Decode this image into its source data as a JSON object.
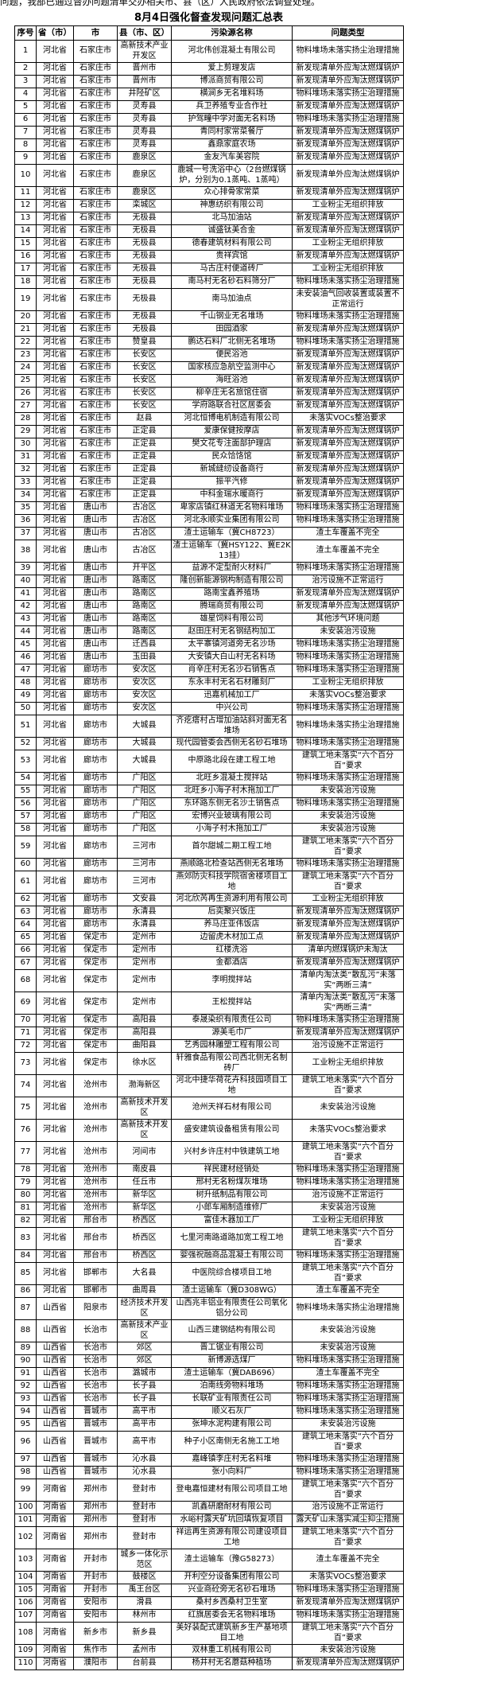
{
  "document": {
    "intro_text": "问题，我部已通过督办问题清单交办相关市、县（区）人民政府依法调查处理。",
    "title": "8月4日强化督查发现问题汇总表"
  },
  "table": {
    "headers": [
      "序号",
      "省（市）",
      "市",
      "县（市、区）",
      "污染源名称",
      "问题类型"
    ],
    "rows": [
      [
        "1",
        "河北省",
        "石家庄市",
        "高新技术产业开发区",
        "河北伟创混凝土有限公司",
        "物料堆场未落实扬尘治理措施"
      ],
      [
        "2",
        "河北省",
        "石家庄市",
        "晋州市",
        "爱上剪理发店",
        "新发现清单外应淘汰燃煤锅炉"
      ],
      [
        "3",
        "河北省",
        "石家庄市",
        "晋州市",
        "博派商贸有限公司",
        "新发现清单外应淘汰燃煤锅炉"
      ],
      [
        "4",
        "河北省",
        "石家庄市",
        "井陉矿区",
        "横涧乡无名堆料场",
        "物料堆场未落实扬尘治理措施"
      ],
      [
        "5",
        "河北省",
        "石家庄市",
        "灵寿县",
        "兵卫养殖专业合作社",
        "新发现清单外应淘汰燃煤锅炉"
      ],
      [
        "6",
        "河北省",
        "石家庄市",
        "灵寿县",
        "护驾疃中学对面无名料场",
        "物料堆场未落实扬尘治理措施"
      ],
      [
        "7",
        "河北省",
        "石家庄市",
        "灵寿县",
        "青同村家常菜餐厅",
        "新发现清单外应淘汰燃煤锅炉"
      ],
      [
        "8",
        "河北省",
        "石家庄市",
        "灵寿县",
        "鑫鼎家庭农场",
        "新发现清单外应淘汰燃煤锅炉"
      ],
      [
        "9",
        "河北省",
        "石家庄市",
        "鹿泉区",
        "金友汽车美容院",
        "新发现清单外应淘汰燃煤锅炉"
      ],
      [
        "10",
        "河北省",
        "石家庄市",
        "鹿泉区",
        "鹿城一号洗浴中心（2台燃煤锅炉，分别为0.1蒸吨、1蒸吨）",
        "新发现清单外应淘汰燃煤锅炉"
      ],
      [
        "11",
        "河北省",
        "石家庄市",
        "鹿泉区",
        "众心排骨家常菜",
        "新发现清单外应淘汰燃煤锅炉"
      ],
      [
        "12",
        "河北省",
        "石家庄市",
        "栾城区",
        "神惠纺织有限公司",
        "工业粉尘无组织排放"
      ],
      [
        "13",
        "河北省",
        "石家庄市",
        "无极县",
        "北马加油站",
        "新发现清单外应淘汰燃煤锅炉"
      ],
      [
        "14",
        "河北省",
        "石家庄市",
        "无极县",
        "诚盛钛美合金",
        "新发现清单外应淘汰燃煤锅炉"
      ],
      [
        "15",
        "河北省",
        "石家庄市",
        "无极县",
        "德春建筑材料有限公司",
        "工业粉尘无组织排放"
      ],
      [
        "16",
        "河北省",
        "石家庄市",
        "无极县",
        "贵祥宾馆",
        "新发现清单外应淘汰燃煤锅炉"
      ],
      [
        "17",
        "河北省",
        "石家庄市",
        "无极县",
        "马古庄村便道砖厂",
        "工业粉尘无组织排放"
      ],
      [
        "18",
        "河北省",
        "石家庄市",
        "无极县",
        "南马村无名砂石料筛分厂",
        "物料堆场未落实扬尘治理措施"
      ],
      [
        "19",
        "河北省",
        "石家庄市",
        "无极县",
        "南马加油点",
        "未安装油气回收装置或装置不正常运行"
      ],
      [
        "20",
        "河北省",
        "石家庄市",
        "无极县",
        "千山钢业无名堆场",
        "物料堆场未落实扬尘治理措施"
      ],
      [
        "21",
        "河北省",
        "石家庄市",
        "无极县",
        "田园酒家",
        "新发现清单外应淘汰燃煤锅炉"
      ],
      [
        "22",
        "河北省",
        "石家庄市",
        "赞皇县",
        "鹏达石料厂北侧无名堆场",
        "物料堆场未落实扬尘治理措施"
      ],
      [
        "23",
        "河北省",
        "石家庄市",
        "长安区",
        "便民浴池",
        "新发现清单外应淘汰燃煤锅炉"
      ],
      [
        "24",
        "河北省",
        "石家庄市",
        "长安区",
        "国家核应急航空监测中心",
        "新发现清单外应淘汰燃煤锅炉"
      ],
      [
        "25",
        "河北省",
        "石家庄市",
        "长安区",
        "海旺浴池",
        "新发现清单外应淘汰燃煤锅炉"
      ],
      [
        "26",
        "河北省",
        "石家庄市",
        "长安区",
        "柳辛庄无名旅馆住宿",
        "新发现清单外应淘汰燃煤锅炉"
      ],
      [
        "27",
        "河北省",
        "石家庄市",
        "长安区",
        "学府路联合社区居委会",
        "新发现清单外应淘汰燃煤锅炉"
      ],
      [
        "28",
        "河北省",
        "石家庄市",
        "赵县",
        "河北恒博电机制造有限公司",
        "未落实VOCs整治要求"
      ],
      [
        "29",
        "河北省",
        "石家庄市",
        "正定县",
        "爱康保健按摩店",
        "新发现清单外应淘汰燃煤锅炉"
      ],
      [
        "30",
        "河北省",
        "石家庄市",
        "正定县",
        "樊文花专注面部护理店",
        "新发现清单外应淘汰燃煤锅炉"
      ],
      [
        "31",
        "河北省",
        "石家庄市",
        "正定县",
        "民众饸饹馆",
        "新发现清单外应淘汰燃煤锅炉"
      ],
      [
        "32",
        "河北省",
        "石家庄市",
        "正定县",
        "新城缝纫设备商行",
        "新发现清单外应淘汰燃煤锅炉"
      ],
      [
        "33",
        "河北省",
        "石家庄市",
        "正定县",
        "振平汽修",
        "新发现清单外应淘汰燃煤锅炉"
      ],
      [
        "34",
        "河北省",
        "石家庄市",
        "正定县",
        "中科金瑞水暖商行",
        "新发现清单外应淘汰燃煤锅炉"
      ],
      [
        "35",
        "河北省",
        "唐山市",
        "古冶区",
        "卑家店镇红林道无名物料堆场",
        "物料堆场未落实扬尘治理措施"
      ],
      [
        "36",
        "河北省",
        "唐山市",
        "古冶区",
        "河北永顺实业集团有限公司",
        "物料堆场未落实扬尘治理措施"
      ],
      [
        "37",
        "河北省",
        "唐山市",
        "古冶区",
        "渣土运输车（冀CH8723）",
        "渣土车覆盖不完全"
      ],
      [
        "38",
        "河北省",
        "唐山市",
        "古冶区",
        "渣土运输车（冀HSY122、冀E2K13挂）",
        "渣土车覆盖不完全"
      ],
      [
        "39",
        "河北省",
        "唐山市",
        "开平区",
        "益源不定型耐火材料厂",
        "物料堆场未落实扬尘治理措施"
      ],
      [
        "40",
        "河北省",
        "唐山市",
        "路南区",
        "隆创新能源钢构制造有限公司",
        "治污设施不正常运行"
      ],
      [
        "41",
        "河北省",
        "唐山市",
        "路南区",
        "路南宝鑫养殖场",
        "新发现清单外应淘汰燃煤锅炉"
      ],
      [
        "42",
        "河北省",
        "唐山市",
        "路南区",
        "腾瑞商贸有限公司",
        "新发现清单外应淘汰燃煤锅炉"
      ],
      [
        "43",
        "河北省",
        "唐山市",
        "路南区",
        "雄星饲料有限公司",
        "其他涉气环境问题"
      ],
      [
        "44",
        "河北省",
        "唐山市",
        "路南区",
        "赵田庄村无名钢结构加工",
        "未安装治污设施"
      ],
      [
        "45",
        "河北省",
        "唐山市",
        "迁西县",
        "太平寨镇河道旁无名沙场",
        "物料堆场未落实扬尘治理措施"
      ],
      [
        "46",
        "河北省",
        "唐山市",
        "玉田县",
        "大安镇大白山村无名料场",
        "物料堆场未落实扬尘治理措施"
      ],
      [
        "47",
        "河北省",
        "廊坊市",
        "安次区",
        "肖辛庄村无名沙石销售点",
        "物料堆场未落实扬尘治理措施"
      ],
      [
        "48",
        "河北省",
        "廊坊市",
        "安次区",
        "东永丰村无名石材雕刻厂",
        "工业粉尘无组织排放"
      ],
      [
        "49",
        "河北省",
        "廊坊市",
        "安次区",
        "迅嘉机械加工厂",
        "未落实VOCs整治要求"
      ],
      [
        "50",
        "河北省",
        "廊坊市",
        "安次区",
        "中兴公司",
        "物料堆场未落实扬尘治理措施"
      ],
      [
        "51",
        "河北省",
        "廊坊市",
        "大城县",
        "齐疙瘩村占增加油站斜对面无名堆场",
        "物料堆场未落实扬尘治理措施"
      ],
      [
        "52",
        "河北省",
        "廊坊市",
        "大城县",
        "现代园管委会西侧无名砂石堆场",
        "物料堆场未落实扬尘治理措施"
      ],
      [
        "53",
        "河北省",
        "廊坊市",
        "大城县",
        "中原路北段在建工程工地",
        "建筑工地未落实“六个百分百”要求"
      ],
      [
        "54",
        "河北省",
        "廊坊市",
        "广阳区",
        "北旺乡混凝土搅拌站",
        "物料堆场未落实扬尘治理措施"
      ],
      [
        "55",
        "河北省",
        "廊坊市",
        "广阳区",
        "北旺乡小海子村木拖加工厂",
        "未安装治污设施"
      ],
      [
        "56",
        "河北省",
        "廊坊市",
        "广阳区",
        "东环路东侧无名沙土销售点",
        "物料堆场未落实扬尘治理措施"
      ],
      [
        "57",
        "河北省",
        "廊坊市",
        "广阳区",
        "宏博兴业玻璃有限公司",
        "未安装治污设施"
      ],
      [
        "58",
        "河北省",
        "廊坊市",
        "广阳区",
        "小海子村木拖加工厂",
        "未安装治污设施"
      ],
      [
        "59",
        "河北省",
        "廊坊市",
        "三河市",
        "首尔甜城二期工程工地",
        "建筑工地未落实“六个百分百”要求"
      ],
      [
        "60",
        "河北省",
        "廊坊市",
        "三河市",
        "燕顺路北检查站西侧无名堆场",
        "物料堆场未落实扬尘治理措施"
      ],
      [
        "61",
        "河北省",
        "廊坊市",
        "三河市",
        "燕郊防灾科技学院宿舍楼项目工地",
        "建筑工地未落实“六个百分百”要求"
      ],
      [
        "62",
        "河北省",
        "廊坊市",
        "文安县",
        "河北欣芮再生资源利用有限公司",
        "工业粉尘无组织排放"
      ],
      [
        "63",
        "河北省",
        "廊坊市",
        "永清县",
        "后奕聚兴饭庄",
        "新发现清单外应淘汰燃煤锅炉"
      ],
      [
        "64",
        "河北省",
        "廊坊市",
        "永清县",
        "养马庄亚伟饭店",
        "新发现清单外应淘汰燃煤锅炉"
      ],
      [
        "65",
        "河北省",
        "保定市",
        "定州市",
        "边留虎木材加工点",
        "新发现清单外应淘汰燃煤锅炉"
      ],
      [
        "66",
        "河北省",
        "保定市",
        "定州市",
        "红楼洗浴",
        "清单内燃煤锅炉未淘汰"
      ],
      [
        "67",
        "河北省",
        "保定市",
        "定州市",
        "金都酒店",
        "新发现清单外应淘汰燃煤锅炉"
      ],
      [
        "68",
        "河北省",
        "保定市",
        "定州市",
        "李明搅拌站",
        "清单内淘汰类“散乱污”未落实“两断三清”"
      ],
      [
        "69",
        "河北省",
        "保定市",
        "定州市",
        "王松搅拌站",
        "清单内淘汰类“散乱污”未落实“两断三清”"
      ],
      [
        "70",
        "河北省",
        "保定市",
        "高阳县",
        "泰晟染织有限责任公司",
        "物料堆场未落实扬尘治理措施"
      ],
      [
        "71",
        "河北省",
        "保定市",
        "高阳县",
        "源美毛巾厂",
        "新发现清单外应淘汰燃煤锅炉"
      ],
      [
        "72",
        "河北省",
        "保定市",
        "曲阳县",
        "艺秀园林雕塑工程有限公司",
        "治污设施不正常运行"
      ],
      [
        "73",
        "河北省",
        "保定市",
        "徐水区",
        "轩雅食品有限公司西北侧无名制砖厂",
        "工业粉尘无组织排放"
      ],
      [
        "74",
        "河北省",
        "沧州市",
        "渤海新区",
        "河北中捷华荷花卉科技园项目工地",
        "建筑工地未落实“六个百分百”要求"
      ],
      [
        "75",
        "河北省",
        "沧州市",
        "高新技术开发区",
        "沧州天祥石材有限公司",
        "未安装治污设施"
      ],
      [
        "76",
        "河北省",
        "沧州市",
        "高新技术开发区",
        "盛安建筑设备租赁有限公司",
        "未落实VOCs整治要求"
      ],
      [
        "77",
        "河北省",
        "沧州市",
        "河间市",
        "兴村乡许庄村中铁建筑工地",
        "建筑工地未落实“六个百分百”要求"
      ],
      [
        "78",
        "河北省",
        "沧州市",
        "南皮县",
        "祥民建材经销处",
        "物料堆场未落实扬尘治理措施"
      ],
      [
        "79",
        "河北省",
        "沧州市",
        "任丘市",
        "邢村无名粉煤灰堆场",
        "物料堆场未落实扬尘治理措施"
      ],
      [
        "80",
        "河北省",
        "沧州市",
        "新华区",
        "树升纸制品有限公司",
        "治污设施不正常运行"
      ],
      [
        "81",
        "河北省",
        "沧州市",
        "新华区",
        "小郎车厢制造维修厂",
        "未安装治污设施"
      ],
      [
        "82",
        "河北省",
        "邢台市",
        "桥西区",
        "富佳木器加工厂",
        "工业粉尘无组织排放"
      ],
      [
        "83",
        "河北省",
        "邢台市",
        "桥西区",
        "七里河南路道路加宽工程工地",
        "建筑工地未落实“六个百分百”要求"
      ],
      [
        "84",
        "河北省",
        "邢台市",
        "桥西区",
        "婴强祝融商品混凝土有限公司",
        "物料堆场未落实扬尘治理措施"
      ],
      [
        "85",
        "河北省",
        "邯郸市",
        "大名县",
        "中医院综合楼项目工地",
        "建筑工地未落实“六个百分百”要求"
      ],
      [
        "86",
        "河北省",
        "邯郸市",
        "曲周县",
        "渣土运输车（冀D308WG）",
        "渣土车覆盖不完全"
      ],
      [
        "87",
        "山西省",
        "阳泉市",
        "经济技术开发区",
        "山西兆丰铝业有限责任公司氧化铝分公司",
        "物料堆场未落实扬尘治理措施"
      ],
      [
        "88",
        "山西省",
        "长治市",
        "高新技术产业区",
        "山西三建钢结构有限公司",
        "未安装治污设施"
      ],
      [
        "89",
        "山西省",
        "长治市",
        "郊区",
        "晋工锯业有限公司",
        "未安装治污设施"
      ],
      [
        "90",
        "山西省",
        "长治市",
        "郊区",
        "新博源选煤厂",
        "物料堆场未落实扬尘治理措施"
      ],
      [
        "91",
        "山西省",
        "长治市",
        "潞城市",
        "渣土运输车（冀DAB696）",
        "渣土车覆盖不完全"
      ],
      [
        "92",
        "山西省",
        "长治市",
        "长子县",
        "泊南线旁物料堆场",
        "物料堆场未落实扬尘治理措施"
      ],
      [
        "93",
        "山西省",
        "长治市",
        "长子县",
        "长联矿业有限责任公司",
        "物料堆场未落实扬尘治理措施"
      ],
      [
        "94",
        "山西省",
        "晋城市",
        "高平市",
        "顺义石灰厂",
        "物料堆场未落实扬尘治理措施"
      ],
      [
        "95",
        "山西省",
        "晋城市",
        "高平市",
        "张坤水泥构建有限公司",
        "未安装治污设施"
      ],
      [
        "96",
        "山西省",
        "晋城市",
        "高平市",
        "种子小区南侧无名施工工地",
        "建筑工地未落实“六个百分百”要求"
      ],
      [
        "97",
        "山西省",
        "晋城市",
        "沁水县",
        "嘉峰镇李庄村无名料堆",
        "物料堆场未落实扬尘治理措施"
      ],
      [
        "98",
        "山西省",
        "晋城市",
        "沁水县",
        "张小向料厂",
        "物料堆场未落实扬尘治理措施"
      ],
      [
        "99",
        "河南省",
        "郑州市",
        "登封市",
        "登电嘉恒建材有限公司项目工地",
        "建筑工地未落实“六个百分百”要求"
      ],
      [
        "100",
        "河南省",
        "郑州市",
        "登封市",
        "凯鑫研磨耐材有限公司",
        "治污设施不正常运行"
      ],
      [
        "101",
        "河南省",
        "郑州市",
        "登封市",
        "水峪村露天矿坑回填恢复项目",
        "露天矿山未落实减尘抑尘措施"
      ],
      [
        "102",
        "河南省",
        "郑州市",
        "登封市",
        "祥运再生资源有限公司建设项目工地",
        "建筑工地未落实“六个百分百”要求"
      ],
      [
        "103",
        "河南省",
        "开封市",
        "城乡一体化示范区",
        "渣土运输车（豫G58273）",
        "渣土车覆盖不完全"
      ],
      [
        "104",
        "河南省",
        "开封市",
        "鼓楼区",
        "开利空分设备集团有限公司",
        "未落实VOCs整治要求"
      ],
      [
        "105",
        "河南省",
        "开封市",
        "禹王台区",
        "兴业商砼旁无名砂石堆场",
        "物料堆场未落实扬尘治理措施"
      ],
      [
        "106",
        "河南省",
        "安阳市",
        "滑县",
        "桑村乡西桑村卫生室",
        "新发现清单外应淘汰燃煤锅炉"
      ],
      [
        "107",
        "河南省",
        "安阳市",
        "林州市",
        "红旗居委会无名物料堆场",
        "物料堆场未落实扬尘治理措施"
      ],
      [
        "108",
        "河南省",
        "新乡市",
        "新乡县",
        "美好装配式建筑新乡生产基地项目工地",
        "建筑工地未落实“六个百分百”要求"
      ],
      [
        "109",
        "河南省",
        "焦作市",
        "孟州市",
        "双林重工机械有限公司",
        "未安装治污设施"
      ],
      [
        "110",
        "河南省",
        "濮阳市",
        "台前县",
        "杨井村无名蘑菇种植场",
        "新发现清单外应淘汰燃煤锅炉"
      ]
    ]
  }
}
